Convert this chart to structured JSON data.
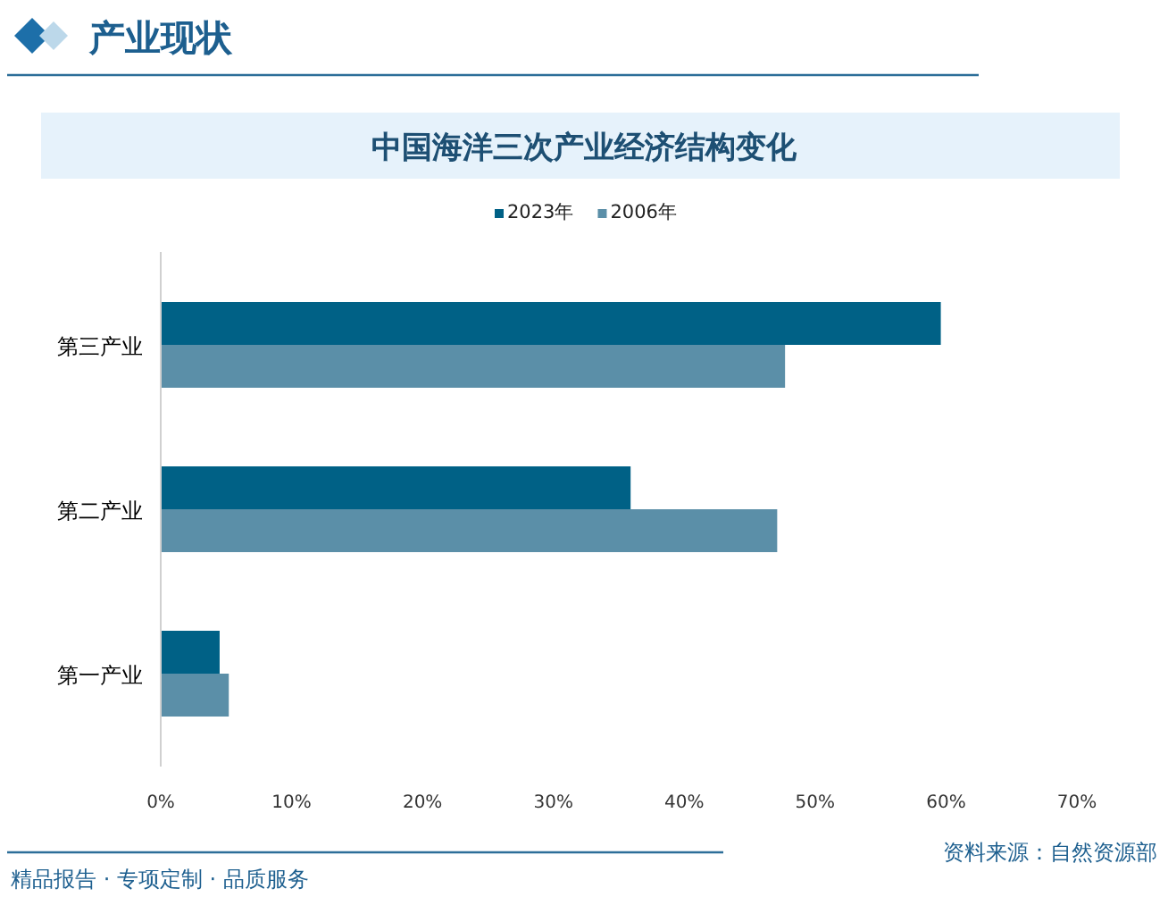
{
  "chart_data": {
    "type": "bar",
    "orientation": "horizontal",
    "title": "中国海洋三次产业经济结构变化",
    "categories": [
      "第三产业",
      "第二产业",
      "第一产业"
    ],
    "series": [
      {
        "name": "2023年",
        "color": "#006186",
        "values": [
          59.6,
          35.9,
          4.5
        ]
      },
      {
        "name": "2006年",
        "color": "#5b8fa8",
        "values": [
          47.7,
          47.1,
          5.2
        ]
      }
    ],
    "xlim": [
      0,
      70
    ],
    "xticks": [
      {
        "value": 0,
        "label": "0%"
      },
      {
        "value": 10,
        "label": "10%"
      },
      {
        "value": 20,
        "label": "20%"
      },
      {
        "value": 30,
        "label": "30%"
      },
      {
        "value": 40,
        "label": "40%"
      },
      {
        "value": 50,
        "label": "50%"
      },
      {
        "value": 60,
        "label": "60%"
      },
      {
        "value": 70,
        "label": "70%"
      }
    ],
    "grid": false,
    "legend": "top",
    "annotations": [
      "产业现状",
      "资料来源：自然资源部",
      "精品报告 · 专项定制 · 品质服务"
    ]
  }
}
